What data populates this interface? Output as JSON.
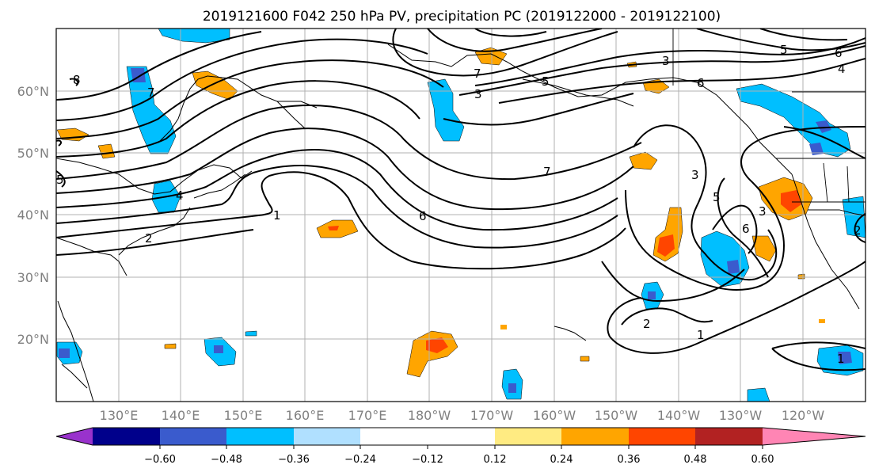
{
  "title": "2019121600 F042 250 hPa PV, precipitation PC (2019122000 - 2019122100)",
  "axes": {
    "lat_ticks": [
      "60°N",
      "50°N",
      "40°N",
      "30°N",
      "20°N"
    ],
    "lon_ticks": [
      "130°E",
      "140°E",
      "150°E",
      "160°E",
      "170°E",
      "180°W",
      "170°W",
      "160°W",
      "150°W",
      "140°W",
      "130°W",
      "120°W"
    ]
  },
  "colorbar": {
    "ticks": [
      "−0.60",
      "−0.48",
      "−0.36",
      "−0.24",
      "−0.12",
      "0.12",
      "0.24",
      "0.36",
      "0.48",
      "0.60"
    ],
    "colors": [
      "#9932CC",
      "#00008B",
      "#3A5BCD",
      "#00BFFF",
      "#B0E0FF",
      "#FFFFFF",
      "#FFEB82",
      "#FFA500",
      "#FF4500",
      "#B22222",
      "#FF85B4"
    ]
  },
  "contour_labels": [
    "1",
    "1",
    "1",
    "2",
    "2",
    "2",
    "3",
    "3",
    "3",
    "3",
    "4",
    "4",
    "5",
    "5",
    "5",
    "5",
    "6",
    "6",
    "6",
    "6",
    "7",
    "7",
    "7",
    "8"
  ]
}
